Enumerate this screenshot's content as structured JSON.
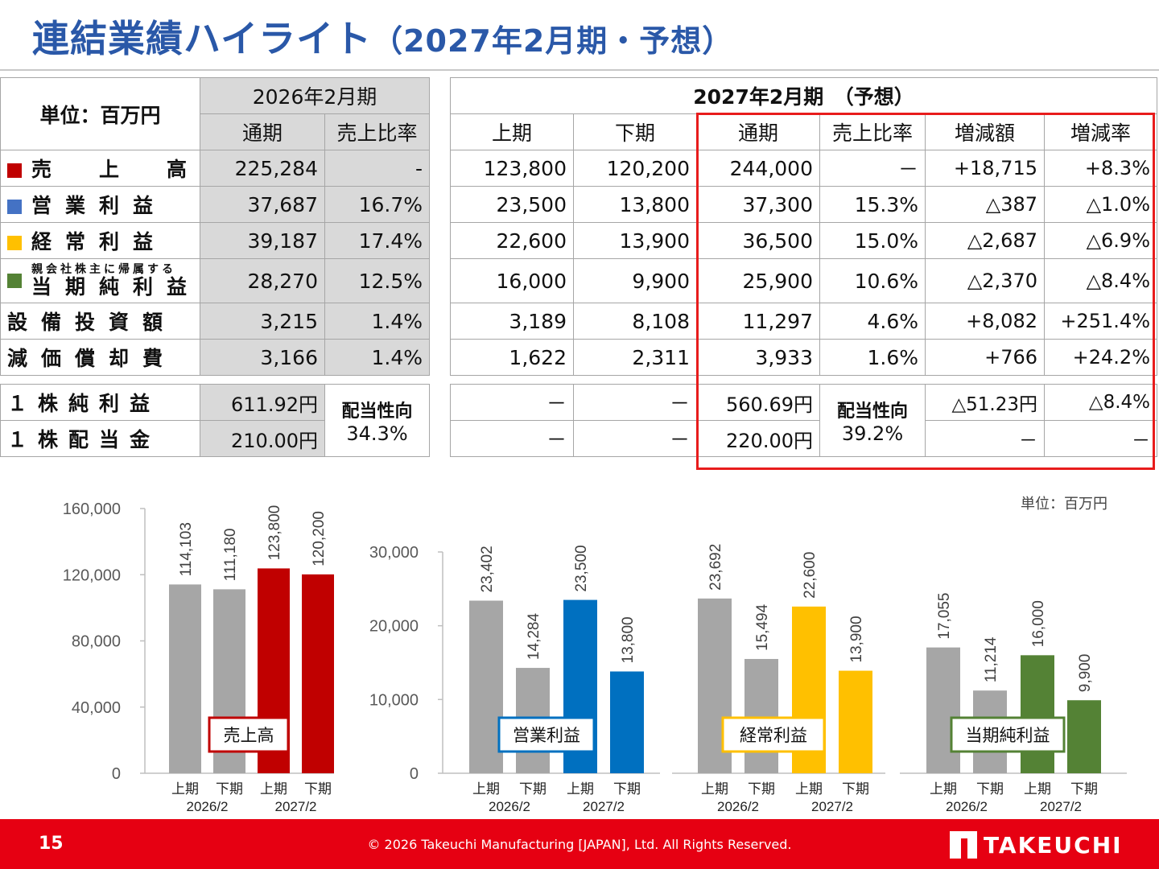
{
  "page": {
    "title": "連結業績ハイライト",
    "title_sub": "（2027年2月期・予想）",
    "unit_label": "単位：百万円",
    "page_number": "15",
    "copyright": "© 2026 Takeuchi Manufacturing [JAPAN], Ltd. All Rights Reserved.",
    "logo_text": "TAKEUCHI"
  },
  "table": {
    "unit": "単位：百万円",
    "period_prev": "2026年2月期",
    "period_next": "2027年2月期　（予想）",
    "col_full_year": "通期",
    "col_ratio": "売上比率",
    "col_h1": "上期",
    "col_h2": "下期",
    "col_diff": "増減額",
    "col_rate": "増減率",
    "rows": [
      {
        "label": "売　上　高",
        "color": "#c00000",
        "prev_full": "225,284",
        "prev_ratio": "-",
        "h1": "123,800",
        "h2": "120,200",
        "full": "244,000",
        "ratio": "－",
        "diff": "+18,715",
        "rate": "+8.3%"
      },
      {
        "label": "営業利益",
        "color": "#4472c4",
        "prev_full": "37,687",
        "prev_ratio": "16.7%",
        "h1": "23,500",
        "h2": "13,800",
        "full": "37,300",
        "ratio": "15.3%",
        "diff": "△387",
        "rate": "△1.0%"
      },
      {
        "label": "経常利益",
        "color": "#ffc000",
        "prev_full": "39,187",
        "prev_ratio": "17.4%",
        "h1": "22,600",
        "h2": "13,900",
        "full": "36,500",
        "ratio": "15.0%",
        "diff": "△2,687",
        "rate": "△6.9%"
      },
      {
        "label_small": "親会社株主に帰属する",
        "label": "当期純利益",
        "color": "#548235",
        "prev_full": "28,270",
        "prev_ratio": "12.5%",
        "h1": "16,000",
        "h2": "9,900",
        "full": "25,900",
        "ratio": "10.6%",
        "diff": "△2,370",
        "rate": "△8.4%"
      }
    ],
    "rows2": [
      {
        "label": "設備投資額",
        "prev_full": "3,215",
        "prev_ratio": "1.4%",
        "h1": "3,189",
        "h2": "8,108",
        "full": "11,297",
        "ratio": "4.6%",
        "diff": "+8,082",
        "rate": "+251.4%"
      },
      {
        "label": "減価償却費",
        "prev_full": "3,166",
        "prev_ratio": "1.4%",
        "h1": "1,622",
        "h2": "2,311",
        "full": "3,933",
        "ratio": "1.6%",
        "diff": "+766",
        "rate": "+24.2%"
      }
    ],
    "rows3": [
      {
        "label": "１株純利益",
        "prev_full": "611.92円",
        "h1": "－",
        "h2": "－",
        "full": "560.69円",
        "diff": "△51.23円",
        "rate": "△8.4%"
      },
      {
        "label": "１株配当金",
        "prev_full": "210.00円",
        "h1": "－",
        "h2": "－",
        "full": "220.00円",
        "diff": "－",
        "rate": "－"
      }
    ],
    "payout_label": "配当性向",
    "payout_prev": "34.3%",
    "payout_next": "39.2%"
  },
  "chart_data": [
    {
      "type": "bar",
      "title": "売上高",
      "categories": [
        "上期",
        "下期",
        "上期",
        "下期"
      ],
      "groups": [
        "2026/2",
        "2027/2"
      ],
      "values": [
        114103,
        111180,
        123800,
        120200
      ],
      "labels": [
        "114,103",
        "111,180",
        "123,800",
        "120,200"
      ],
      "colors": [
        "#a6a6a6",
        "#a6a6a6",
        "#c00000",
        "#c00000"
      ],
      "ylim": [
        0,
        160000
      ],
      "ticks": [
        "0",
        "40,000",
        "80,000",
        "120,000",
        "160,000"
      ],
      "tick_values": [
        0,
        40000,
        80000,
        120000,
        160000
      ]
    },
    {
      "type": "bar",
      "title": "営業利益",
      "categories": [
        "上期",
        "下期",
        "上期",
        "下期"
      ],
      "groups": [
        "2026/2",
        "2027/2"
      ],
      "values": [
        23402,
        14284,
        23500,
        13800
      ],
      "labels": [
        "23,402",
        "14,284",
        "23,500",
        "13,800"
      ],
      "colors": [
        "#a6a6a6",
        "#a6a6a6",
        "#0070c0",
        "#0070c0"
      ],
      "ylim": [
        0,
        30000
      ],
      "ticks": [
        "0",
        "10,000",
        "20,000",
        "30,000"
      ],
      "tick_values": [
        0,
        10000,
        20000,
        30000
      ]
    },
    {
      "type": "bar",
      "title": "経常利益",
      "categories": [
        "上期",
        "下期",
        "上期",
        "下期"
      ],
      "groups": [
        "2026/2",
        "2027/2"
      ],
      "values": [
        23692,
        15494,
        22600,
        13900
      ],
      "labels": [
        "23,692",
        "15,494",
        "22,600",
        "13,900"
      ],
      "colors": [
        "#a6a6a6",
        "#a6a6a6",
        "#ffc000",
        "#ffc000"
      ],
      "ylim": [
        0,
        30000
      ]
    },
    {
      "type": "bar",
      "title": "当期純利益",
      "categories": [
        "上期",
        "下期",
        "上期",
        "下期"
      ],
      "groups": [
        "2026/2",
        "2027/2"
      ],
      "values": [
        17055,
        11214,
        16000,
        9900
      ],
      "labels": [
        "17,055",
        "11,214",
        "16,000",
        "9,900"
      ],
      "colors": [
        "#a6a6a6",
        "#a6a6a6",
        "#548235",
        "#548235"
      ],
      "ylim": [
        0,
        30000
      ]
    }
  ]
}
